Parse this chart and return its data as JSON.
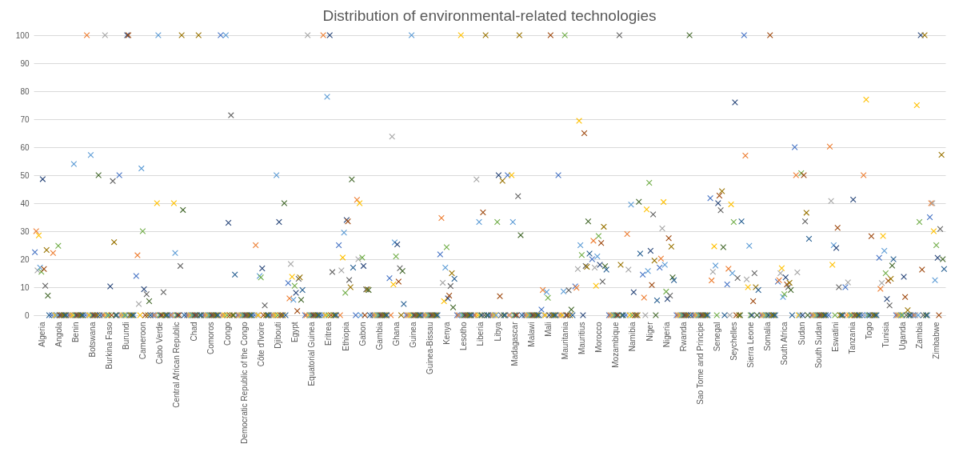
{
  "chart_data": {
    "type": "scatter",
    "title": "Distribution of environmental-related technologies",
    "categories": [
      "Algeria",
      "Angola",
      "Benin",
      "Botswana",
      "Burkina Faso",
      "Burundi",
      "Cameroon",
      "Cabo Verde",
      "Central African Republic",
      "Chad",
      "Comoros",
      "Congo",
      "Democratic Republic of the Congo",
      "Côte d'Ivoire",
      "Djibouti",
      "Egypt",
      "Equatorial Guinea",
      "Eritrea",
      "Ethiopia",
      "Gabon",
      "Gambia",
      "Ghana",
      "Guinea",
      "Guinea-Bissau",
      "Kenya",
      "Lesotho",
      "Liberia",
      "Libya",
      "Madagascar",
      "Malawi",
      "Mali",
      "Mauritania",
      "Mauritius",
      "Morocco",
      "Mozambique",
      "Namibia",
      "Niger",
      "Nigeria",
      "Rwanda",
      "Sao Tome and Principe",
      "Senegal",
      "Seychelles",
      "Sierra Leone",
      "Somalia",
      "South Africa",
      "Sudan",
      "South Sudan",
      "Eswatini",
      "Tanzania",
      "Togo",
      "Tunisia",
      "Uganda",
      "Zambia",
      "Zimbabwe"
    ],
    "series": [
      {
        "color": "#4472c4",
        "values": [
          22.5,
          0,
          0,
          0,
          0,
          50,
          14,
          0,
          0,
          0,
          0,
          100,
          0,
          0,
          0,
          11.5,
          0,
          0,
          25,
          0,
          0,
          13.2,
          0,
          0,
          21.7,
          0,
          0,
          0,
          50,
          0,
          2,
          50,
          10.3,
          20,
          0,
          0,
          14.5,
          17,
          0,
          0,
          41.8,
          11,
          100,
          0,
          12,
          60,
          0,
          0,
          10,
          0,
          20.5,
          0,
          0,
          35
        ]
      },
      {
        "color": "#ed7d31",
        "values": [
          30,
          22.2,
          0,
          100,
          0,
          0,
          21.4,
          0,
          0,
          0,
          0,
          0,
          0,
          25,
          0,
          6,
          0,
          100,
          0,
          41.2,
          0,
          0,
          0,
          0,
          34.7,
          0,
          0,
          0,
          0,
          0,
          9,
          0,
          9.8,
          26.6,
          0,
          29,
          6.3,
          20.2,
          0,
          0,
          12.4,
          16.6,
          57,
          0,
          12.5,
          50,
          0,
          60.2,
          0,
          50,
          9.4,
          0,
          0,
          40
        ]
      },
      {
        "color": "#a5a5a5",
        "values": [
          16,
          0,
          0,
          0,
          100,
          0,
          4,
          0,
          0,
          0,
          0,
          0,
          0,
          0,
          0,
          18.3,
          100,
          0,
          16,
          20,
          0,
          63.8,
          0,
          0,
          11.6,
          0,
          48.5,
          0,
          0,
          0,
          0,
          0,
          16.5,
          17,
          0,
          16.3,
          0,
          31,
          0,
          0,
          15.5,
          0,
          12.8,
          0,
          15,
          15.3,
          0,
          40.8,
          11.7,
          0,
          11.5,
          0,
          0,
          40
        ]
      },
      {
        "color": "#ffc000",
        "values": [
          28.5,
          0,
          0,
          0,
          0,
          0,
          0,
          40,
          40,
          0,
          0,
          0,
          0,
          0,
          0,
          13.7,
          0,
          0,
          20.6,
          40,
          0,
          11,
          0,
          0,
          5,
          100,
          0,
          0,
          50,
          0,
          0,
          0,
          69.4,
          10.5,
          0,
          0,
          37.8,
          40.4,
          0,
          0,
          24.6,
          39.6,
          10,
          0,
          16.8,
          0,
          0,
          18,
          0,
          77,
          28.3,
          0,
          75,
          30
        ]
      },
      {
        "color": "#5b9bd5",
        "values": [
          17,
          0,
          54,
          57.2,
          0,
          0,
          52.4,
          100,
          22.2,
          0,
          0,
          100,
          0,
          14,
          50,
          5.5,
          0,
          78,
          29.5,
          0,
          0,
          26,
          100,
          0,
          17,
          0,
          33.3,
          0,
          33.3,
          0,
          8.3,
          8.5,
          25,
          21,
          0,
          39.5,
          15.8,
          18,
          0,
          0,
          17.7,
          15,
          24.8,
          0,
          6.5,
          0,
          0,
          25,
          0,
          0,
          23,
          0,
          0,
          12.5
        ]
      },
      {
        "color": "#70ad47",
        "values": [
          15.5,
          24.8,
          0,
          0,
          0,
          0,
          30,
          0,
          0,
          0,
          0,
          0,
          0,
          13.5,
          0,
          10.5,
          0,
          0,
          8,
          20.6,
          0,
          21,
          0,
          0,
          24.3,
          0,
          0,
          33.3,
          0,
          0,
          6.2,
          100,
          21.5,
          28.3,
          0,
          0,
          47.3,
          8.4,
          0,
          0,
          0,
          33.3,
          0,
          0,
          7.5,
          50.7,
          0,
          0,
          0,
          0,
          15,
          0,
          33.3,
          25
        ]
      },
      {
        "color": "#264478",
        "values": [
          48.6,
          0,
          0,
          0,
          10.3,
          100,
          9.3,
          0,
          0,
          0,
          0,
          33,
          0,
          16.7,
          33.3,
          8,
          0,
          100,
          34,
          17.6,
          0,
          25.3,
          0,
          0,
          6,
          0,
          0,
          50,
          0,
          0,
          0,
          0,
          0,
          18,
          0,
          8.2,
          23,
          5.8,
          0,
          0,
          40,
          76,
          0,
          0,
          13.5,
          0,
          0,
          24,
          41.3,
          0,
          5.8,
          13.7,
          100,
          20.5
        ]
      },
      {
        "color": "#9e480e",
        "values": [
          16.5,
          0,
          0,
          0,
          0,
          100,
          0,
          0,
          0,
          0,
          0,
          0,
          0,
          0,
          0,
          1.5,
          0,
          0,
          33.5,
          0,
          0,
          12,
          0,
          0,
          7,
          0,
          36.7,
          6.8,
          0,
          0,
          100,
          0,
          65,
          25.8,
          0,
          0,
          10.8,
          27.5,
          0,
          0,
          42.7,
          0,
          5,
          100,
          11,
          50,
          0,
          31.2,
          0,
          28.2,
          12.3,
          6.5,
          16.3,
          0
        ]
      },
      {
        "color": "#636363",
        "values": [
          10.5,
          0,
          0,
          0,
          47.9,
          0,
          7.5,
          8.2,
          17.6,
          0,
          0,
          71.4,
          0,
          3.5,
          0,
          13,
          0,
          15.4,
          12.6,
          9.2,
          0,
          16.8,
          0,
          0,
          10.4,
          0,
          0,
          0,
          42.5,
          0,
          0,
          8.9,
          17.6,
          12,
          100,
          0,
          36,
          7,
          0,
          0,
          37.5,
          13.3,
          15,
          0,
          10,
          33.5,
          0,
          10,
          0,
          0,
          3.5,
          0,
          0,
          30.8
        ]
      },
      {
        "color": "#997300",
        "values": [
          23.3,
          0,
          0,
          0,
          26.1,
          0,
          0,
          0,
          100,
          100,
          0,
          0,
          0,
          0,
          0,
          13.5,
          0,
          0,
          10,
          9.2,
          0,
          0,
          0,
          0,
          15,
          0,
          100,
          48,
          100,
          0,
          0,
          0,
          17.3,
          31.6,
          18,
          0,
          19.5,
          24.5,
          0,
          0,
          44.3,
          0,
          10,
          0,
          11.6,
          36.6,
          0,
          0,
          0,
          0,
          13,
          1.8,
          100,
          57.3
        ]
      },
      {
        "color": "#43682b",
        "values": [
          7,
          0,
          0,
          50,
          0,
          0,
          5,
          0,
          37.6,
          0,
          0,
          0,
          0,
          0,
          40,
          5.5,
          0,
          0,
          48.5,
          9,
          0,
          15.8,
          0,
          0,
          2.8,
          0,
          0,
          0,
          28.6,
          0,
          0,
          2,
          33.5,
          17.5,
          0,
          40.5,
          0,
          13.5,
          100,
          0,
          24.3,
          0,
          0,
          0,
          9,
          0,
          0,
          0,
          0,
          0,
          17.7,
          0,
          0,
          20
        ]
      },
      {
        "color": "#255e91",
        "values": [
          0,
          0,
          0,
          0,
          0,
          0,
          0,
          0,
          0,
          0,
          0,
          14.5,
          0,
          0,
          0,
          9,
          0,
          0,
          17,
          0,
          0,
          4,
          0,
          0,
          13,
          0,
          0,
          0,
          0,
          0,
          0,
          0,
          22,
          16.3,
          0,
          22,
          5.3,
          12.5,
          0,
          0,
          0,
          33.5,
          9,
          0,
          0,
          27.3,
          0,
          0,
          0,
          0,
          20,
          0,
          0,
          16.5
        ]
      }
    ],
    "ylim": [
      0,
      100
    ],
    "yticks": [
      0,
      10,
      20,
      30,
      40,
      50,
      60,
      70,
      80,
      90,
      100
    ],
    "grid": "y",
    "marker": "cross",
    "legend": false
  }
}
